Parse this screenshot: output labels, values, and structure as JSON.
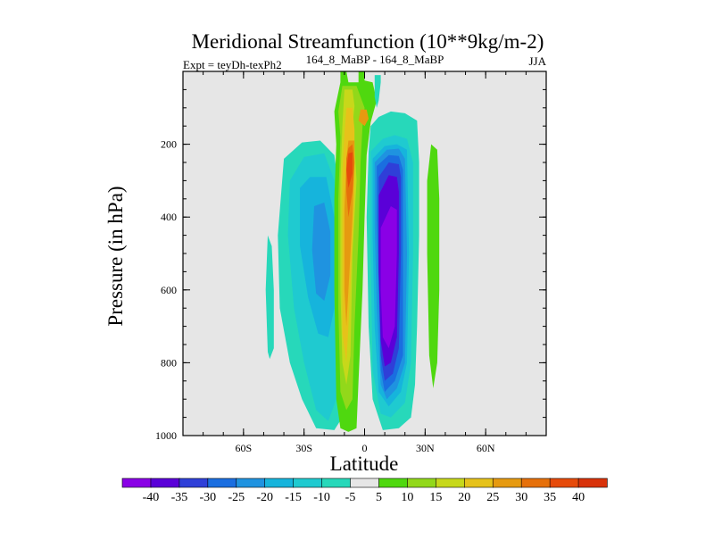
{
  "chart_data": {
    "type": "contour",
    "title": "Meridional Streamfunction (10**9kg/m-2)",
    "left_subtitle": "Expt = teyDh-texPh2",
    "center_subtitle": "164_8_MaBP - 164_8_MaBP",
    "right_subtitle": "JJA",
    "xlabel": "Latitude",
    "ylabel": "Pressure (in hPa)",
    "xlim": [
      -90,
      90
    ],
    "ylim": [
      1000,
      0
    ],
    "x_ticks": [
      {
        "value": -60,
        "label": "60S"
      },
      {
        "value": -30,
        "label": "30S"
      },
      {
        "value": 0,
        "label": "0"
      },
      {
        "value": 30,
        "label": "30N"
      },
      {
        "value": 60,
        "label": "60N"
      }
    ],
    "y_ticks": [
      {
        "value": 200,
        "label": "200"
      },
      {
        "value": 400,
        "label": "400"
      },
      {
        "value": 600,
        "label": "600"
      },
      {
        "value": 800,
        "label": "800"
      },
      {
        "value": 1000,
        "label": "1000"
      }
    ],
    "background_color": "#e6e6e6",
    "colorbar": {
      "levels": [
        "-40",
        "-35",
        "-30",
        "-25",
        "-20",
        "-15",
        "-10",
        "-5",
        "5",
        "10",
        "15",
        "20",
        "25",
        "30",
        "35",
        "40"
      ],
      "colors": [
        "#8a00e6",
        "#5a00d8",
        "#2f3fd8",
        "#1a6ee0",
        "#1f93e0",
        "#16b4dc",
        "#1fcad0",
        "#27d8ba",
        "#e6e6e6",
        "#4fd80f",
        "#92d81a",
        "#c7d81a",
        "#e6c21a",
        "#e69a10",
        "#e6700a",
        "#e64a0a",
        "#d8320a"
      ]
    },
    "features": [
      {
        "name": "Southern descending cell",
        "levels": [
          "-5",
          "-10",
          "-15",
          "-20"
        ],
        "lat_range": [
          -45,
          -12
        ],
        "pressure_range": [
          200,
          990
        ],
        "center_lat": -27,
        "center_pressure": 480,
        "min_value": -20
      },
      {
        "name": "Southern outer branch",
        "levels": [
          "-5"
        ],
        "lat_range": [
          -48,
          -42
        ],
        "pressure_range": [
          450,
          790
        ],
        "center_lat": -45,
        "center_pressure": 620
      },
      {
        "name": "Equatorial ascending branch",
        "levels": [
          "5",
          "10",
          "15",
          "20",
          "25",
          "30",
          "35"
        ],
        "lat_range": [
          -15,
          0
        ],
        "pressure_range": [
          0,
          990
        ],
        "center_lat": -7,
        "center_pressure": 280,
        "max_value": 35
      },
      {
        "name": "Northern winter Hadley cell",
        "levels": [
          "-5",
          "-10",
          "-15",
          "-20",
          "-25",
          "-30",
          "-35",
          "-40"
        ],
        "lat_range": [
          2,
          27
        ],
        "pressure_range": [
          130,
          990
        ],
        "center_lat": 12,
        "center_pressure": 600,
        "min_value": -40
      },
      {
        "name": "Northern weak positive cell",
        "levels": [
          "5"
        ],
        "lat_range": [
          31,
          37
        ],
        "pressure_range": [
          200,
          870
        ],
        "center_lat": 34,
        "center_pressure": 500,
        "max_value": 5
      }
    ]
  }
}
